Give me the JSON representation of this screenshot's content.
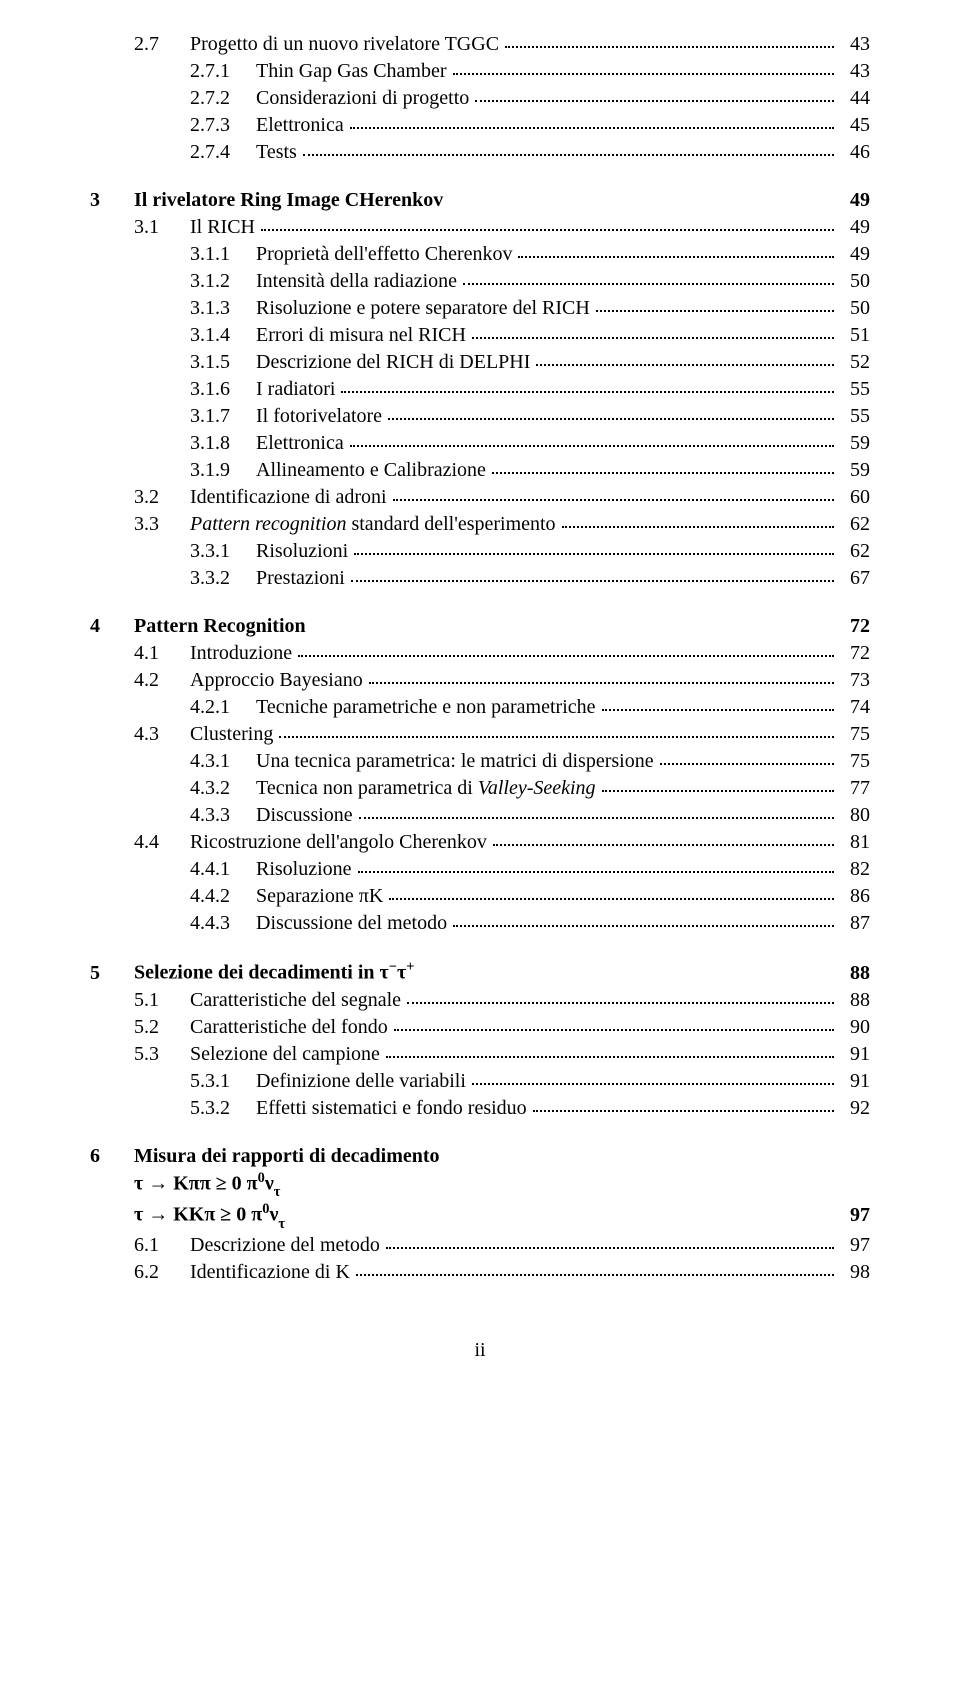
{
  "toc": {
    "pre": [
      {
        "lvl": 1,
        "num": "2.7",
        "title": "Progetto di un nuovo rivelatore TGGC",
        "page": "43"
      },
      {
        "lvl": 2,
        "num": "2.7.1",
        "title": "Thin Gap Gas Chamber",
        "page": "43"
      },
      {
        "lvl": 2,
        "num": "2.7.2",
        "title": "Considerazioni di progetto",
        "page": "44"
      },
      {
        "lvl": 2,
        "num": "2.7.3",
        "title": "Elettronica",
        "page": "45"
      },
      {
        "lvl": 2,
        "num": "2.7.4",
        "title": "Tests",
        "page": "46"
      }
    ],
    "chapter3": {
      "num": "3",
      "title": "Il rivelatore Ring Image CHerenkov",
      "page": "49",
      "entries": [
        {
          "lvl": 1,
          "num": "3.1",
          "title": "Il RICH",
          "page": "49"
        },
        {
          "lvl": 2,
          "num": "3.1.1",
          "title": "Proprietà dell'effetto Cherenkov",
          "page": "49"
        },
        {
          "lvl": 2,
          "num": "3.1.2",
          "title": "Intensità della radiazione",
          "page": "50"
        },
        {
          "lvl": 2,
          "num": "3.1.3",
          "title": "Risoluzione e potere separatore del RICH",
          "page": "50"
        },
        {
          "lvl": 2,
          "num": "3.1.4",
          "title": "Errori di misura nel RICH",
          "page": "51"
        },
        {
          "lvl": 2,
          "num": "3.1.5",
          "title": "Descrizione del RICH di DELPHI",
          "page": "52"
        },
        {
          "lvl": 2,
          "num": "3.1.6",
          "title": "I radiatori",
          "page": "55"
        },
        {
          "lvl": 2,
          "num": "3.1.7",
          "title": "Il fotorivelatore",
          "page": "55"
        },
        {
          "lvl": 2,
          "num": "3.1.8",
          "title": "Elettronica",
          "page": "59"
        },
        {
          "lvl": 2,
          "num": "3.1.9",
          "title": "Allineamento e Calibrazione",
          "page": "59"
        },
        {
          "lvl": 1,
          "num": "3.2",
          "title": "Identificazione di adroni",
          "page": "60"
        },
        {
          "lvl": 1,
          "num": "3.3",
          "titleHtml": "<span class='italic'>Pattern recognition</span> standard dell'esperimento",
          "page": "62"
        },
        {
          "lvl": 2,
          "num": "3.3.1",
          "title": "Risoluzioni",
          "page": "62"
        },
        {
          "lvl": 2,
          "num": "3.3.2",
          "title": "Prestazioni",
          "page": "67"
        }
      ]
    },
    "chapter4": {
      "num": "4",
      "title": "Pattern Recognition",
      "page": "72",
      "entries": [
        {
          "lvl": 1,
          "num": "4.1",
          "title": "Introduzione",
          "page": "72"
        },
        {
          "lvl": 1,
          "num": "4.2",
          "title": "Approccio Bayesiano",
          "page": "73"
        },
        {
          "lvl": 2,
          "num": "4.2.1",
          "title": "Tecniche parametriche e non parametriche",
          "page": "74"
        },
        {
          "lvl": 1,
          "num": "4.3",
          "title": "Clustering",
          "page": "75"
        },
        {
          "lvl": 2,
          "num": "4.3.1",
          "title": "Una tecnica parametrica: le matrici di dispersione",
          "page": "75"
        },
        {
          "lvl": 2,
          "num": "4.3.2",
          "titleHtml": "Tecnica non parametrica di <span class='italic'>Valley-Seeking</span>",
          "page": "77"
        },
        {
          "lvl": 2,
          "num": "4.3.3",
          "title": "Discussione",
          "page": "80"
        },
        {
          "lvl": 1,
          "num": "4.4",
          "title": "Ricostruzione dell'angolo Cherenkov",
          "page": "81"
        },
        {
          "lvl": 2,
          "num": "4.4.1",
          "title": "Risoluzione",
          "page": "82"
        },
        {
          "lvl": 2,
          "num": "4.4.2",
          "titleHtml": "Separazione πK",
          "page": "86"
        },
        {
          "lvl": 2,
          "num": "4.4.3",
          "title": "Discussione del metodo",
          "page": "87"
        }
      ]
    },
    "chapter5": {
      "num": "5",
      "titleHtml": "Selezione dei decadimenti in τ<sup>−</sup>τ<sup>+</sup>",
      "page": "88",
      "entries": [
        {
          "lvl": 1,
          "num": "5.1",
          "title": "Caratteristiche del segnale",
          "page": "88"
        },
        {
          "lvl": 1,
          "num": "5.2",
          "title": "Caratteristiche del fondo",
          "page": "90"
        },
        {
          "lvl": 1,
          "num": "5.3",
          "title": "Selezione del campione",
          "page": "91"
        },
        {
          "lvl": 2,
          "num": "5.3.1",
          "title": "Definizione delle variabili",
          "page": "91"
        },
        {
          "lvl": 2,
          "num": "5.3.2",
          "title": "Effetti sistematici e fondo residuo",
          "page": "92"
        }
      ]
    },
    "chapter6": {
      "num": "6",
      "line1": "Misura dei rapporti di decadimento",
      "line2Html": "τ → Kππ ≥ 0 π<sup>0</sup>ν<sub>τ</sub>",
      "line3Html": "τ → KKπ ≥ 0 π<sup>0</sup>ν<sub>τ</sub>",
      "page": "97",
      "entries": [
        {
          "lvl": 1,
          "num": "6.1",
          "title": "Descrizione del metodo",
          "page": "97"
        },
        {
          "lvl": 1,
          "num": "6.2",
          "title": "Identificazione di K",
          "page": "98"
        }
      ]
    }
  },
  "footer": "ii"
}
